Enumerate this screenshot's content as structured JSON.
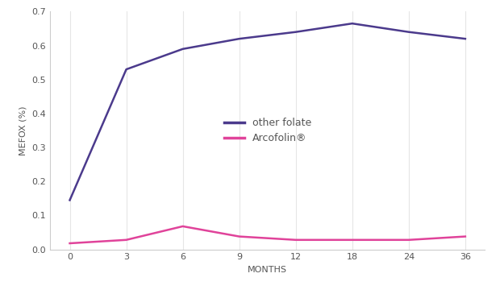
{
  "chart_data": {
    "type": "line",
    "x_label": "MONTHS",
    "y_label": "MEFOX (%)",
    "categories": [
      "0",
      "3",
      "6",
      "9",
      "12",
      "18",
      "24",
      "36"
    ],
    "series": [
      {
        "name": "other folate",
        "color": "#4b3a8c",
        "values": [
          0.145,
          0.53,
          0.59,
          0.62,
          0.64,
          0.665,
          0.64,
          0.62
        ]
      },
      {
        "name": "Arcofolin®",
        "color": "#e0439a",
        "values": [
          0.018,
          0.028,
          0.068,
          0.038,
          0.028,
          0.028,
          0.028,
          0.038
        ]
      }
    ],
    "ylim": [
      0,
      0.7
    ],
    "yticks": [
      0.0,
      0.1,
      0.2,
      0.3,
      0.4,
      0.5,
      0.6,
      0.7
    ],
    "grid": true,
    "legend": "center"
  }
}
